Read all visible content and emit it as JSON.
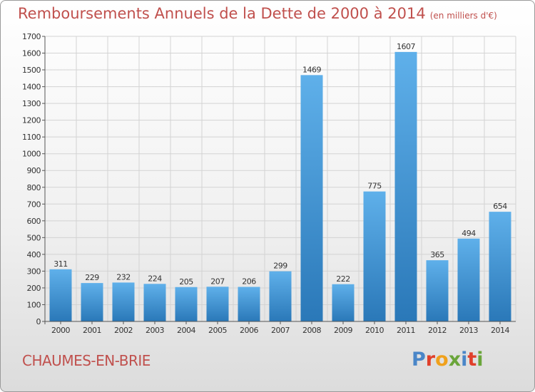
{
  "header": {
    "title": "Remboursements Annuels de la Dette de 2000 à 2014",
    "unit": "(en milliers d'€)"
  },
  "footer": {
    "place": "CHAUMES-EN-BRIE",
    "brand": "Proxiti",
    "brand_colors": [
      "#4a86c8",
      "#e0402b",
      "#f0a11c",
      "#6aa53a",
      "#4a86c8",
      "#e0402b",
      "#6aa53a"
    ]
  },
  "colors": {
    "title": "#c0504d",
    "bar_light": "#5dade8",
    "bar_dark": "#2a78b8",
    "grid": "#d3d3d3",
    "axis": "#555555"
  },
  "chart_data": {
    "type": "bar",
    "title": "Remboursements Annuels de la Dette de 2000 à 2014",
    "xlabel": "",
    "ylabel": "",
    "categories": [
      "2000",
      "2001",
      "2002",
      "2003",
      "2004",
      "2005",
      "2006",
      "2007",
      "2008",
      "2009",
      "2010",
      "2011",
      "2012",
      "2013",
      "2014"
    ],
    "values": [
      311,
      229,
      232,
      224,
      205,
      207,
      206,
      299,
      1469,
      222,
      775,
      1607,
      365,
      494,
      654
    ],
    "ylim": [
      0,
      1700
    ],
    "yticks": [
      0,
      100,
      200,
      300,
      400,
      500,
      600,
      700,
      800,
      900,
      1000,
      1100,
      1200,
      1300,
      1400,
      1500,
      1600,
      1700
    ],
    "grid": true,
    "legend": "none",
    "data_labels": true
  }
}
